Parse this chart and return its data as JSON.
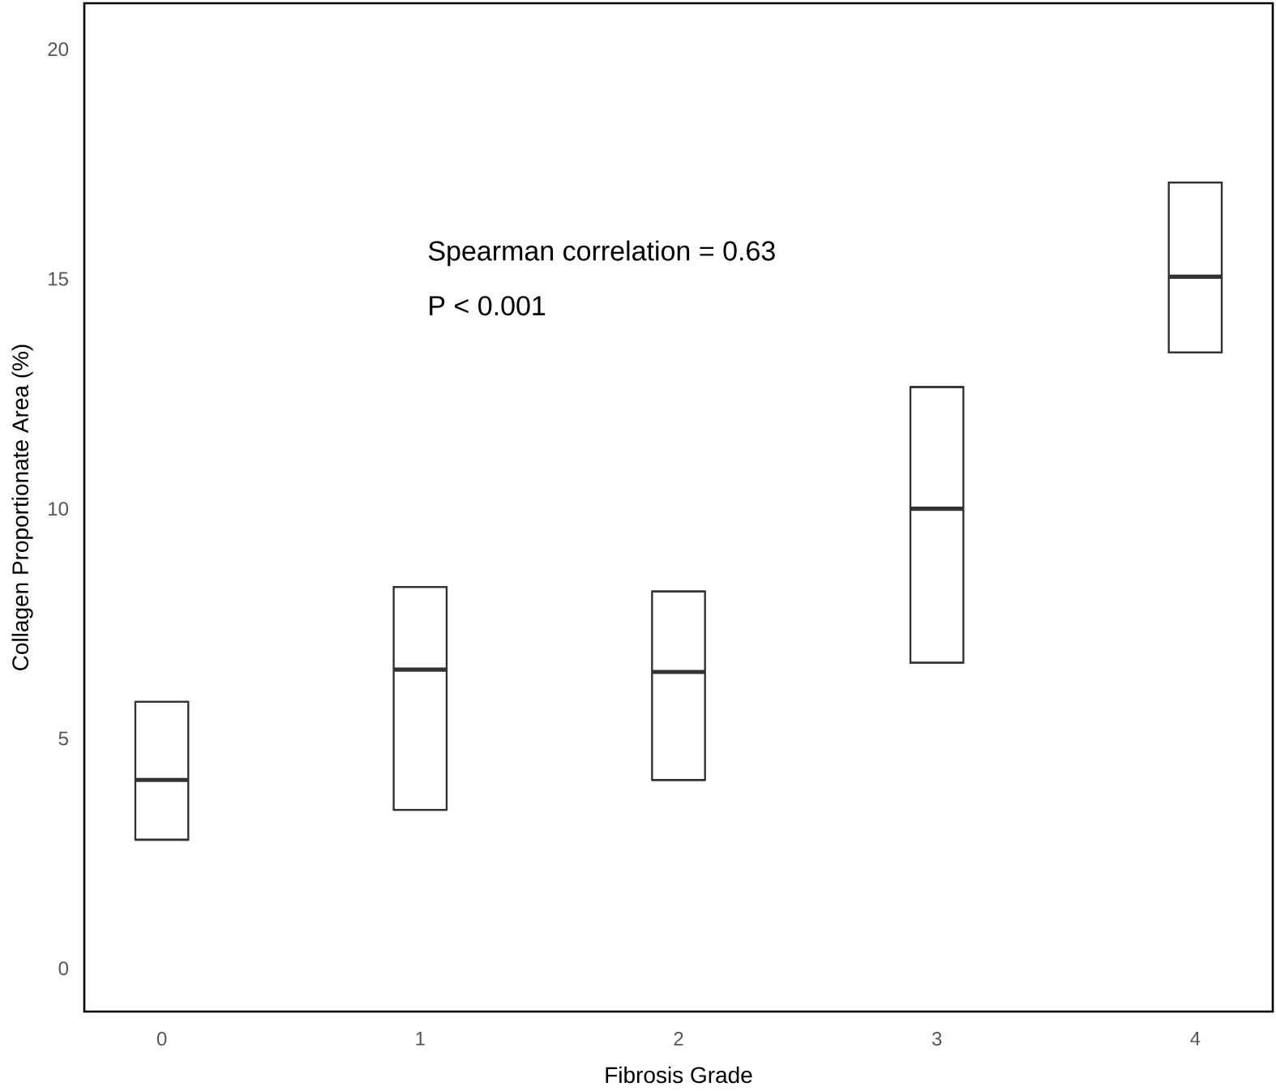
{
  "chart_data": {
    "type": "box",
    "xlabel": "Fibrosis Grade",
    "ylabel": "Collagen Proportionate Area (%)",
    "categories": [
      "0",
      "1",
      "2",
      "3",
      "4"
    ],
    "color": "#333333",
    "boxes": [
      {
        "low": 2.8,
        "q1": 2.8,
        "median": 4.1,
        "q3": 5.8,
        "high": 5.8
      },
      {
        "low": 3.45,
        "q1": 3.45,
        "median": 6.5,
        "q3": 8.3,
        "high": 8.3
      },
      {
        "low": 4.1,
        "q1": 4.1,
        "median": 6.45,
        "q3": 8.2,
        "high": 8.2
      },
      {
        "low": 6.65,
        "q1": 6.65,
        "median": 10.0,
        "q3": 12.65,
        "high": 12.65
      },
      {
        "low": 13.4,
        "q1": 13.4,
        "median": 15.05,
        "q3": 17.1,
        "high": 17.1
      }
    ],
    "ylim": [
      -0.94,
      21.0
    ],
    "yticks": [
      0,
      5,
      10,
      15,
      20
    ],
    "annotations": [
      "Spearman correlation = 0.63",
      "P < 0.001"
    ]
  }
}
